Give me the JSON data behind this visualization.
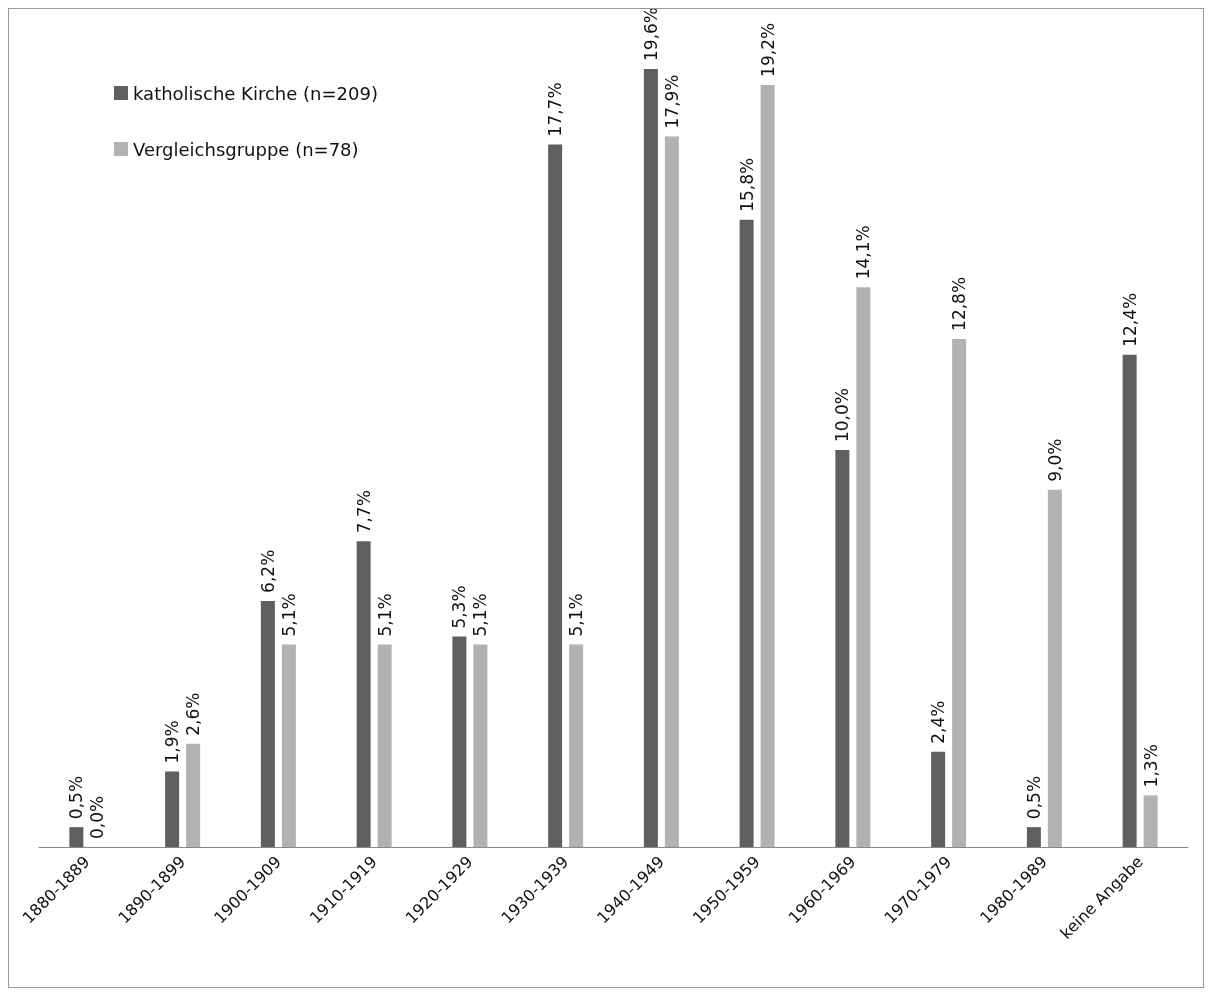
{
  "chart_data": {
    "type": "bar",
    "categories": [
      "1880-1889",
      "1890-1899",
      "1900-1909",
      "1910-1919",
      "1920-1929",
      "1930-1939",
      "1940-1949",
      "1950-1959",
      "1960-1969",
      "1970-1979",
      "1980-1989",
      "keine Angabe"
    ],
    "series": [
      {
        "name": "katholische Kirche (n=209)",
        "color": "#5f5f5f",
        "values": [
          0.5,
          1.9,
          6.2,
          7.7,
          5.3,
          17.7,
          19.6,
          15.8,
          10.0,
          2.4,
          0.5,
          12.4
        ],
        "value_labels": [
          "0,5%",
          "1,9%",
          "6,2%",
          "7,7%",
          "5,3%",
          "17,7%",
          "19,6%",
          "15,8%",
          "10,0%",
          "2,4%",
          "0,5%",
          "12,4%"
        ]
      },
      {
        "name": "Vergleichsgruppe (n=78)",
        "color": "#b2b2b2",
        "values": [
          0.0,
          2.6,
          5.1,
          5.1,
          5.1,
          5.1,
          17.9,
          19.2,
          14.1,
          12.8,
          9.0,
          1.3
        ],
        "value_labels": [
          "0,0%",
          "2,6%",
          "5,1%",
          "5,1%",
          "5,1%",
          "5,1%",
          "17,9%",
          "19,2%",
          "14,1%",
          "12,8%",
          "9,0%",
          "1,3%"
        ]
      }
    ],
    "legend": "top left"
  }
}
